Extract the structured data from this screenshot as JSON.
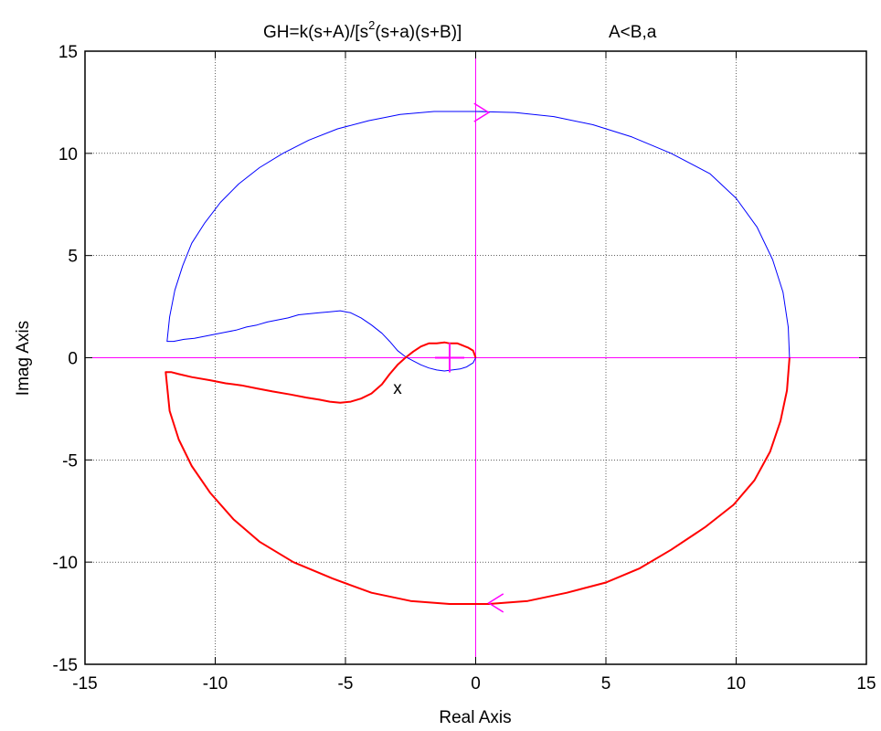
{
  "chart_data": {
    "type": "line",
    "title": "GH=k(s+A)/[s",
    "title_superscript": "2",
    "title_tail": "(s+a)(s+B)]",
    "title_right": "A<B,a",
    "xlabel": "Real Axis",
    "ylabel": "Imag Axis",
    "xlim": [
      -15,
      15
    ],
    "ylim": [
      -15,
      15
    ],
    "xticks": [
      -15,
      -10,
      -5,
      0,
      5,
      10,
      15
    ],
    "yticks": [
      -15,
      -10,
      -5,
      0,
      5,
      10,
      15
    ],
    "xtick_labels": [
      "-15",
      "-10",
      "-5",
      "0",
      "5",
      "10",
      "15"
    ],
    "ytick_labels": [
      "-15",
      "-10",
      "-5",
      "0",
      "5",
      "10",
      "15"
    ],
    "grid": true,
    "annotation": {
      "text": "x",
      "x": -3.0,
      "y": -1.5
    },
    "critical_point": {
      "x": -1,
      "y": 0,
      "color": "#ff00ff"
    },
    "axis_lines_color": "#ff00ff",
    "arrows": [
      {
        "x": 0.5,
        "y": 12.0,
        "direction": "right",
        "color": "#ff00ff"
      },
      {
        "x": 0.5,
        "y": -12.0,
        "direction": "left",
        "color": "#ff00ff"
      }
    ],
    "series": [
      {
        "color": "#0000ff",
        "width": 1,
        "x": [
          0.0,
          -0.1,
          -0.35,
          -0.6,
          -0.9,
          -1.2,
          -1.5,
          -1.8,
          -2.1,
          -2.4,
          -2.7,
          -3.0,
          -3.3,
          -3.6,
          -4.0,
          -4.4,
          -4.8,
          -5.2,
          -5.6,
          -6.0,
          -6.4,
          -6.8,
          -7.2,
          -7.6,
          -8.0,
          -8.4,
          -8.8,
          -9.2,
          -9.6,
          -10.0,
          -10.4,
          -10.8,
          -11.2,
          -11.6,
          -11.85,
          -11.75,
          -11.55,
          -11.25,
          -10.9,
          -10.4,
          -9.8,
          -9.1,
          -8.3,
          -7.4,
          -6.4,
          -5.3,
          -4.1,
          -2.9,
          -1.6,
          -0.5,
          0.0,
          0.3,
          0.0,
          1.5,
          3.0,
          4.5,
          6.0,
          7.5,
          9.0,
          10.0,
          10.8,
          11.4,
          11.8,
          12.0,
          12.05
        ],
        "y": [
          0.0,
          -0.25,
          -0.45,
          -0.55,
          -0.6,
          -0.65,
          -0.6,
          -0.5,
          -0.35,
          -0.15,
          0.05,
          0.35,
          0.8,
          1.2,
          1.6,
          1.95,
          2.2,
          2.3,
          2.25,
          2.2,
          2.15,
          2.1,
          1.95,
          1.85,
          1.75,
          1.6,
          1.5,
          1.35,
          1.25,
          1.15,
          1.05,
          0.95,
          0.9,
          0.8,
          0.8,
          2.0,
          3.3,
          4.5,
          5.6,
          6.6,
          7.6,
          8.5,
          9.3,
          10.0,
          10.65,
          11.2,
          11.6,
          11.9,
          12.05,
          12.05,
          12.05,
          12.05,
          12.05,
          12.0,
          11.8,
          11.4,
          10.8,
          10.0,
          9.0,
          7.8,
          6.4,
          4.8,
          3.2,
          1.5,
          0.0
        ]
      },
      {
        "color": "#ff0000",
        "width": 2,
        "x": [
          12.05,
          11.95,
          11.7,
          11.3,
          10.7,
          9.9,
          8.8,
          7.5,
          6.3,
          5.0,
          3.5,
          2.0,
          0.5,
          0.0,
          -1.0,
          -2.5,
          -4.0,
          -5.5,
          -7.0,
          -8.3,
          -9.3,
          -10.2,
          -10.9,
          -11.4,
          -11.75,
          -11.9,
          -11.7,
          -11.4,
          -10.9,
          -10.2,
          -9.6,
          -9.0,
          -8.4,
          -7.8,
          -7.1,
          -6.5,
          -6.0,
          -5.6,
          -5.2,
          -4.8,
          -4.4,
          -4.0,
          -3.6,
          -3.3,
          -3.0,
          -2.7,
          -2.4,
          -2.1,
          -1.8,
          -1.5,
          -1.2,
          -1.0,
          -0.7,
          -0.5,
          -0.3,
          -0.1,
          0.0
        ],
        "y": [
          0.0,
          -1.6,
          -3.1,
          -4.6,
          -6.0,
          -7.2,
          -8.3,
          -9.4,
          -10.3,
          -11.0,
          -11.5,
          -11.9,
          -12.05,
          -12.05,
          -12.05,
          -11.9,
          -11.5,
          -10.8,
          -10.0,
          -9.0,
          -7.9,
          -6.6,
          -5.3,
          -4.0,
          -2.6,
          -0.7,
          -0.7,
          -0.8,
          -0.95,
          -1.1,
          -1.25,
          -1.35,
          -1.5,
          -1.65,
          -1.8,
          -1.95,
          -2.05,
          -2.15,
          -2.2,
          -2.15,
          -2.0,
          -1.75,
          -1.3,
          -0.8,
          -0.35,
          0.0,
          0.3,
          0.55,
          0.7,
          0.7,
          0.75,
          0.7,
          0.7,
          0.6,
          0.5,
          0.35,
          0.0
        ]
      }
    ]
  }
}
